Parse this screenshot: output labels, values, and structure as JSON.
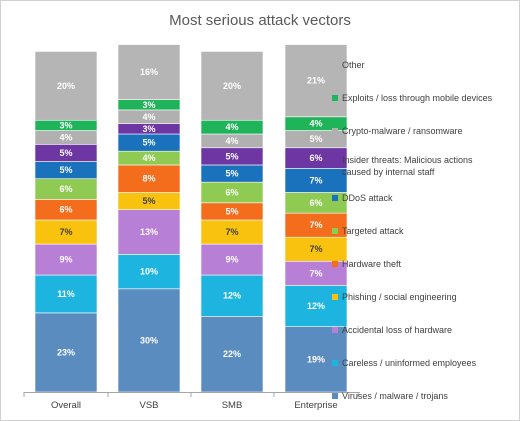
{
  "chart_data": {
    "type": "bar",
    "stacked": true,
    "title": "Most serious attack vectors",
    "categories": [
      "Overall",
      "VSB",
      "SMB",
      "Enterprise"
    ],
    "ylim": [
      0,
      100
    ],
    "legend_position": "right",
    "series": [
      {
        "name": "Viruses / malware / trojans",
        "color": "#5b8cc0",
        "values": [
          23,
          30,
          22,
          19
        ]
      },
      {
        "name": "Careless / uninformed employees",
        "color": "#1eb4e0",
        "values": [
          11,
          10,
          12,
          12
        ]
      },
      {
        "name": "Accidental loss of hardware",
        "color": "#b77fd6",
        "values": [
          9,
          13,
          9,
          7
        ]
      },
      {
        "name": "Phishing / social engineering",
        "color": "#f8c20e",
        "values": [
          7,
          5,
          7,
          7
        ]
      },
      {
        "name": "Hardware theft",
        "color": "#f36d1c",
        "values": [
          6,
          8,
          5,
          7
        ]
      },
      {
        "name": "Targeted attack",
        "color": "#8fcb53",
        "values": [
          6,
          4,
          6,
          6
        ]
      },
      {
        "name": "DDoS attack",
        "color": "#1a72bd",
        "values": [
          5,
          5,
          5,
          7
        ]
      },
      {
        "name": "Insider threats: Malicious actions caused by internal staff",
        "color": "#6d36a3",
        "values": [
          5,
          3,
          5,
          6
        ]
      },
      {
        "name": "Crypto-malware / ransomware",
        "color": "#b0b0b0",
        "values": [
          4,
          4,
          4,
          5
        ]
      },
      {
        "name": "Exploits / loss through mobile devices",
        "color": "#1fb35a",
        "values": [
          3,
          3,
          4,
          4
        ]
      },
      {
        "name": "Other",
        "color": "#b5b5b5",
        "values": [
          20,
          16,
          20,
          21
        ]
      }
    ]
  }
}
